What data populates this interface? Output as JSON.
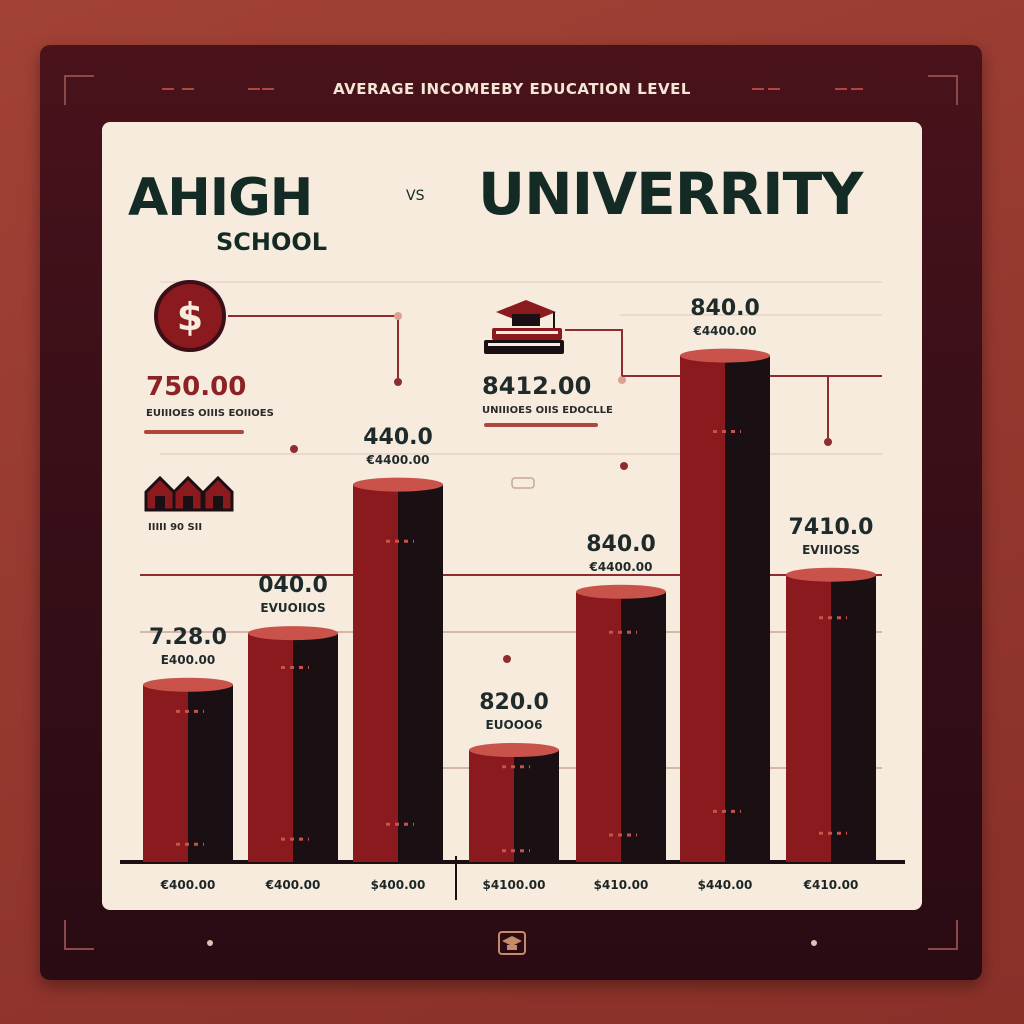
{
  "header": {
    "top_title": "AVERAGE INCOMEEBY EDUCATION LEVEL",
    "left_title": "AHIGH",
    "left_subtitle": "SCHOOL",
    "vs": "VS",
    "right_title": "UNIVERRITY"
  },
  "notes": {
    "left_value": "750.00",
    "left_caption": "EUIIIOES OIIIS EOIIOES",
    "right_value": "8412.00",
    "right_caption": "UNIIIOES OIIS EDOCLLE",
    "houses_caption": "IIIII   90   SII"
  },
  "icons": [
    "dollar-coin-icon",
    "graduation-cap-books-icon",
    "houses-icon",
    "graduation-cap-small-icon"
  ],
  "colors": {
    "bar_front": "#8b1a1f",
    "bar_side": "#1a1014",
    "bar_top": "#c9534a",
    "panel": "#f6ebdd",
    "frame": "#3a0f18",
    "accent_line": "#8d2d2f"
  },
  "chart_data": {
    "type": "bar",
    "title": "AVERAGE INCOMEEBY EDUCATION LEVEL",
    "categories": [
      "€400.00",
      "€400.00",
      "$400.00",
      "$4100.00",
      "$410.00",
      "$440.00",
      "€410.00"
    ],
    "values": [
      7.28,
      9.4,
      15.5,
      4.6,
      11.1,
      20.8,
      11.8
    ],
    "value_labels": [
      "7.28.0",
      "040.0",
      "440.0",
      "820.0",
      "840.0",
      "840.0",
      "7410.0"
    ],
    "sub_labels": [
      "E400.00",
      "EVUOIIOS",
      "€4400.00",
      "EUOOO6",
      "€4400.00",
      "€4400.00",
      "EVIIIOSS"
    ],
    "groups": [
      "AHIGH SCHOOL",
      "UNIVERRITY"
    ],
    "xlabel": "",
    "ylabel": "",
    "ylim": [
      0,
      23
    ],
    "grid": true
  }
}
